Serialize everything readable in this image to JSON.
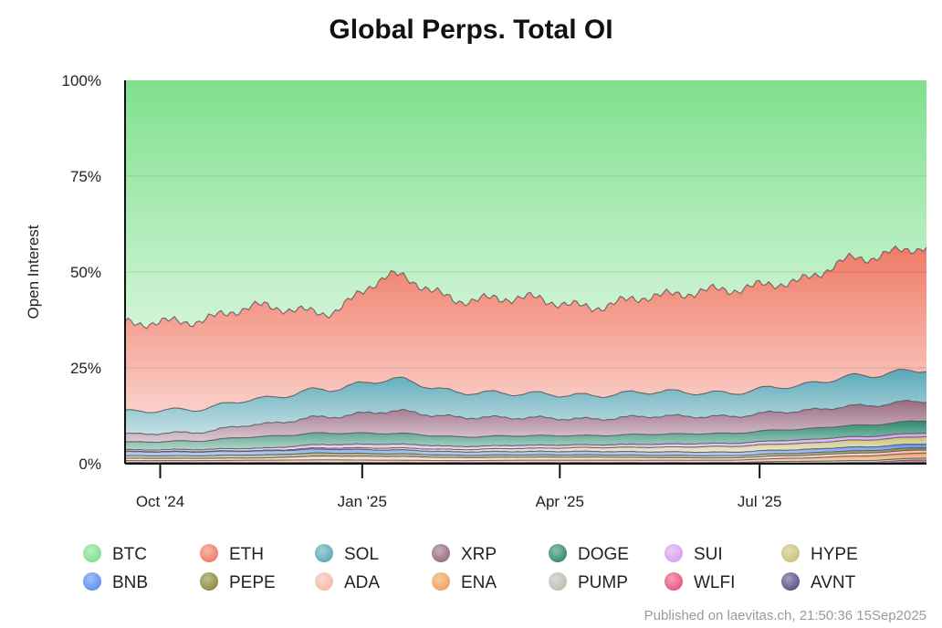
{
  "chart_data": {
    "type": "area",
    "stacking": "percent",
    "title": "Global Perps. Total OI",
    "ylabel": "Open Interest",
    "xlabel": "",
    "ylim": [
      0,
      100
    ],
    "y_ticks": [
      "0%",
      "25%",
      "50%",
      "75%",
      "100%"
    ],
    "x_range": [
      "2024-09-15",
      "2025-09-15"
    ],
    "x_ticks": [
      {
        "label": "Oct '24",
        "date": "2024-10-01"
      },
      {
        "label": "Jan '25",
        "date": "2025-01-01"
      },
      {
        "label": "Apr '25",
        "date": "2025-04-01"
      },
      {
        "label": "Jul '25",
        "date": "2025-07-01"
      }
    ],
    "grid": "horizontal",
    "legend_position": "bottom",
    "x": [
      "2024-09-15",
      "2024-10-15",
      "2024-11-15",
      "2024-12-15",
      "2025-01-15",
      "2025-02-15",
      "2025-03-15",
      "2025-04-15",
      "2025-05-15",
      "2025-06-15",
      "2025-07-15",
      "2025-08-15",
      "2025-09-15"
    ],
    "series": [
      {
        "name": "AVNT",
        "color": "#5a4f8a",
        "values": [
          0.1,
          0.1,
          0.1,
          0.1,
          0.1,
          0.1,
          0.1,
          0.1,
          0.1,
          0.1,
          0.1,
          0.1,
          0.4
        ]
      },
      {
        "name": "WLFI",
        "color": "#e8547a",
        "values": [
          0.1,
          0.1,
          0.1,
          0.1,
          0.1,
          0.1,
          0.1,
          0.1,
          0.1,
          0.1,
          0.1,
          0.2,
          0.6
        ]
      },
      {
        "name": "PUMP",
        "color": "#b8bfb0",
        "values": [
          0.1,
          0.1,
          0.1,
          0.1,
          0.1,
          0.1,
          0.1,
          0.1,
          0.1,
          0.1,
          0.4,
          0.5,
          0.5
        ]
      },
      {
        "name": "ENA",
        "color": "#f0a05a",
        "values": [
          0.5,
          0.5,
          0.6,
          0.7,
          0.6,
          0.5,
          0.6,
          0.6,
          0.6,
          0.6,
          0.8,
          1.2,
          1.3
        ]
      },
      {
        "name": "ADA",
        "color": "#f7b8a8",
        "values": [
          0.6,
          0.6,
          0.6,
          1.0,
          1.0,
          0.8,
          0.8,
          0.8,
          0.7,
          0.6,
          0.7,
          0.8,
          0.8
        ]
      },
      {
        "name": "PEPE",
        "color": "#8a8a3a",
        "values": [
          0.7,
          0.7,
          0.8,
          0.8,
          0.7,
          0.6,
          0.6,
          0.6,
          0.6,
          0.6,
          0.6,
          0.6,
          0.6
        ]
      },
      {
        "name": "BNB",
        "color": "#5b8def",
        "values": [
          1.0,
          1.0,
          1.0,
          1.0,
          1.0,
          0.9,
          0.9,
          0.9,
          0.9,
          0.9,
          0.9,
          1.0,
          1.0
        ]
      },
      {
        "name": "HYPE",
        "color": "#c9c27a",
        "values": [
          0.1,
          0.1,
          0.1,
          0.3,
          0.5,
          0.6,
          0.8,
          1.0,
          1.2,
          1.5,
          1.6,
          1.8,
          1.9
        ]
      },
      {
        "name": "SUI",
        "color": "#d9a0f0",
        "values": [
          0.4,
          0.5,
          0.6,
          0.9,
          1.0,
          0.8,
          0.8,
          0.7,
          0.8,
          0.8,
          0.9,
          0.9,
          0.9
        ]
      },
      {
        "name": "DOGE",
        "color": "#2e8a6e",
        "values": [
          2.0,
          2.2,
          3.0,
          3.0,
          2.8,
          2.5,
          2.5,
          2.4,
          2.6,
          2.6,
          2.8,
          3.0,
          3.2
        ]
      },
      {
        "name": "XRP",
        "color": "#9a6a82",
        "values": [
          2.1,
          2.2,
          3.2,
          4.2,
          5.8,
          5.1,
          4.7,
          4.3,
          4.7,
          4.4,
          4.7,
          5.1,
          5.2
        ]
      },
      {
        "name": "SOL",
        "color": "#5aa8b8",
        "values": [
          5.9,
          6.0,
          6.6,
          7.2,
          8.3,
          6.5,
          6.3,
          6.1,
          6.4,
          6.1,
          6.6,
          7.9,
          8.1
        ]
      },
      {
        "name": "ETH",
        "color": "#f07a66",
        "values": [
          23.0,
          23.0,
          24.0,
          20.0,
          27.0,
          24.0,
          25.0,
          23.0,
          25.0,
          27.0,
          27.0,
          31.0,
          32.0
        ]
      },
      {
        "name": "BTC",
        "color": "#7fe08e",
        "values": [
          63.4,
          62.9,
          58.6,
          60.7,
          51.0,
          57.4,
          56.7,
          59.0,
          56.2,
          54.7,
          52.7,
          46.9,
          43.5
        ]
      }
    ],
    "legend_order": [
      "BTC",
      "ETH",
      "SOL",
      "XRP",
      "DOGE",
      "SUI",
      "HYPE",
      "BNB",
      "PEPE",
      "ADA",
      "ENA",
      "PUMP",
      "WLFI",
      "AVNT"
    ]
  },
  "footer": "Published on laevitas.ch, 21:50:36 15Sep2025"
}
